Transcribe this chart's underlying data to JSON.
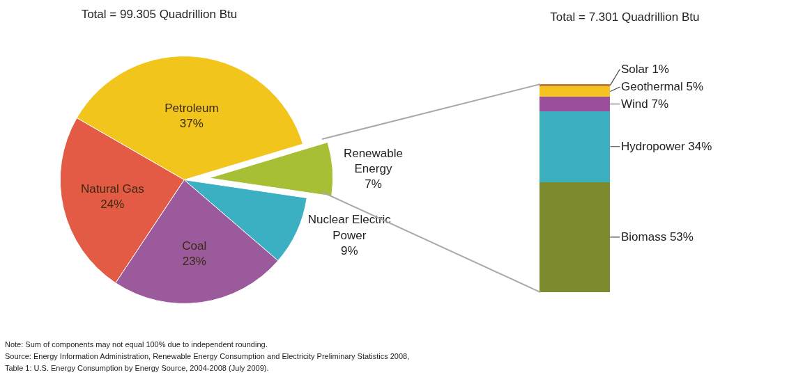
{
  "chart_data": [
    {
      "type": "pie",
      "title": "Total = 99.305 Quadrillion Btu",
      "categories": [
        "Petroleum",
        "Renewable Energy",
        "Nuclear Electric Power",
        "Coal",
        "Natural Gas"
      ],
      "values": [
        37,
        7,
        9,
        23,
        24
      ],
      "colors": [
        "#f2c51c",
        "#a7bf34",
        "#3bb0c2",
        "#9a5a9c",
        "#e35a45"
      ],
      "value_labels": [
        "37%",
        "7%",
        "9%",
        "23%",
        "24%"
      ],
      "legend": false,
      "annotations": [
        "Note: Sum of components may not equal 100% due to independent rounding.",
        "Source: Energy Information Administration, Renewable Energy Consumption and Electricity Preliminary Statistics 2008,",
        "Table 1: U.S. Energy Consumption by Energy Source, 2004-2008 (July 2009)."
      ]
    },
    {
      "type": "bar",
      "title": "Total = 7.301 Quadrillion Btu",
      "stacked": true,
      "legend": false,
      "categories": [
        null
      ],
      "series": [
        {
          "color": "#7d8a2e",
          "values": [
            53
          ],
          "value_labels": [
            "Biomass 53%"
          ]
        },
        {
          "color": "#3db0c0",
          "values": [
            34
          ],
          "value_labels": [
            "Hydropower 34%"
          ]
        },
        {
          "color": "#9a4f9c",
          "values": [
            7
          ],
          "value_labels": [
            "Wind 7%"
          ]
        },
        {
          "color": "#f4c321",
          "values": [
            5
          ],
          "value_labels": [
            "Geothermal 5%"
          ]
        },
        {
          "color": "#c27a2c",
          "values": [
            1
          ],
          "value_labels": [
            "Solar 1%"
          ]
        }
      ]
    }
  ]
}
